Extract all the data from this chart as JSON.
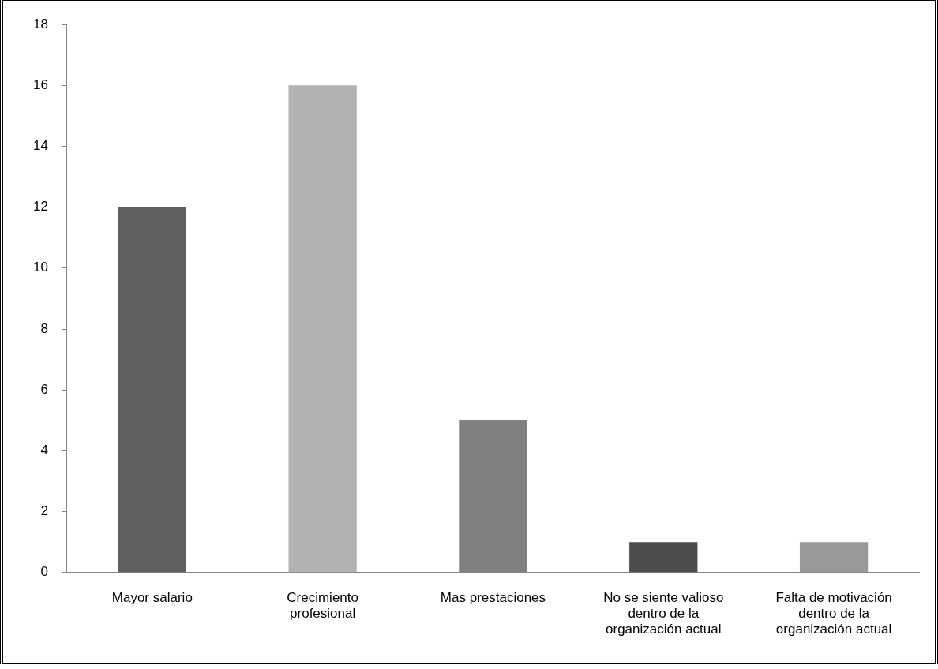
{
  "chart_data": {
    "type": "bar",
    "categories": [
      "Mayor salario",
      "Crecimiento profesional",
      "Mas prestaciones",
      "No se siente valioso dentro de la organización actual",
      "Falta de motivación dentro de la organización actual"
    ],
    "values": [
      12,
      16,
      5,
      1,
      1
    ],
    "colors": [
      "#606060",
      "#b2b2b2",
      "#808080",
      "#4d4d4d",
      "#999999"
    ],
    "ylim": [
      0,
      18
    ],
    "yticks": [
      0,
      2,
      4,
      6,
      8,
      10,
      12,
      14,
      16,
      18
    ],
    "grid": false,
    "legend": false
  }
}
